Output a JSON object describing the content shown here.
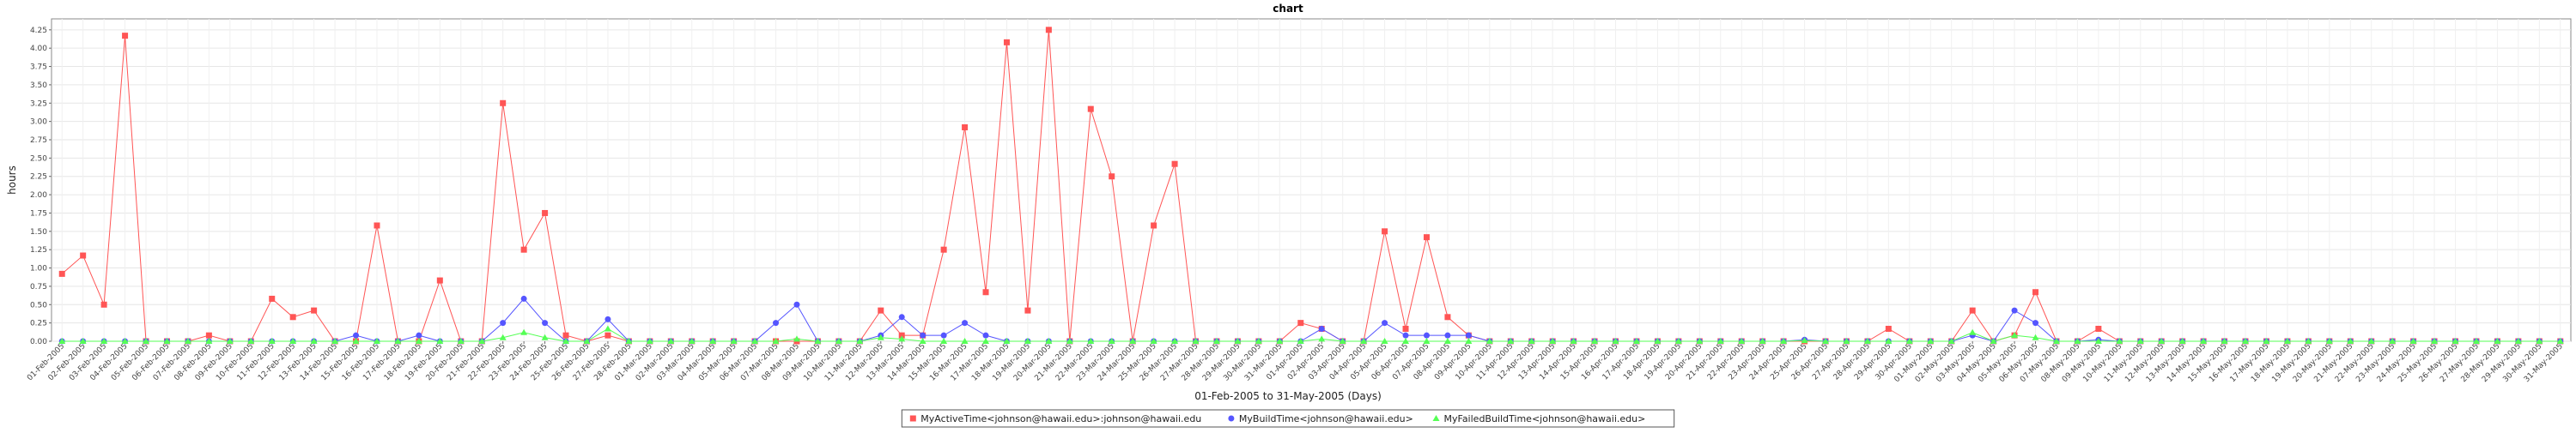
{
  "chart_data": {
    "type": "line",
    "title": "chart",
    "xlabel": "01-Feb-2005 to 31-May-2005 (Days)",
    "ylabel": "hours",
    "ylim": [
      0,
      4.4
    ],
    "yticks": [
      "0.00",
      "0.25",
      "0.50",
      "0.75",
      "1.00",
      "1.25",
      "1.50",
      "1.75",
      "2.00",
      "2.25",
      "2.50",
      "2.75",
      "3.00",
      "3.25",
      "3.50",
      "3.75",
      "4.00",
      "4.25"
    ],
    "grid": true,
    "legend_position": "bottom",
    "categories": [
      "01-Feb-2005",
      "02-Feb-2005",
      "03-Feb-2005",
      "04-Feb-2005",
      "05-Feb-2005",
      "06-Feb-2005",
      "07-Feb-2005",
      "08-Feb-2005",
      "09-Feb-2005",
      "10-Feb-2005",
      "11-Feb-2005",
      "12-Feb-2005",
      "13-Feb-2005",
      "14-Feb-2005",
      "15-Feb-2005",
      "16-Feb-2005",
      "17-Feb-2005",
      "18-Feb-2005",
      "19-Feb-2005",
      "20-Feb-2005",
      "21-Feb-2005",
      "22-Feb-2005",
      "23-Feb-2005",
      "24-Feb-2005",
      "25-Feb-2005",
      "26-Feb-2005",
      "27-Feb-2005",
      "28-Feb-2005",
      "01-Mar-2005",
      "02-Mar-2005",
      "03-Mar-2005",
      "04-Mar-2005",
      "05-Mar-2005",
      "06-Mar-2005",
      "07-Mar-2005",
      "08-Mar-2005",
      "09-Mar-2005",
      "10-Mar-2005",
      "11-Mar-2005",
      "12-Mar-2005",
      "13-Mar-2005",
      "14-Mar-2005",
      "15-Mar-2005",
      "16-Mar-2005",
      "17-Mar-2005",
      "18-Mar-2005",
      "19-Mar-2005",
      "20-Mar-2005",
      "21-Mar-2005",
      "22-Mar-2005",
      "23-Mar-2005",
      "24-Mar-2005",
      "25-Mar-2005",
      "26-Mar-2005",
      "27-Mar-2005",
      "28-Mar-2005",
      "29-Mar-2005",
      "30-Mar-2005",
      "31-Mar-2005",
      "01-Apr-2005",
      "02-Apr-2005",
      "03-Apr-2005",
      "04-Apr-2005",
      "05-Apr-2005",
      "06-Apr-2005",
      "07-Apr-2005",
      "08-Apr-2005",
      "09-Apr-2005",
      "10-Apr-2005",
      "11-Apr-2005",
      "12-Apr-2005",
      "13-Apr-2005",
      "14-Apr-2005",
      "15-Apr-2005",
      "16-Apr-2005",
      "17-Apr-2005",
      "18-Apr-2005",
      "19-Apr-2005",
      "20-Apr-2005",
      "21-Apr-2005",
      "22-Apr-2005",
      "23-Apr-2005",
      "24-Apr-2005",
      "25-Apr-2005",
      "26-Apr-2005",
      "27-Apr-2005",
      "28-Apr-2005",
      "29-Apr-2005",
      "30-Apr-2005",
      "01-May-2005",
      "02-May-2005",
      "03-May-2005",
      "04-May-2005",
      "05-May-2005",
      "06-May-2005",
      "07-May-2005",
      "08-May-2005",
      "09-May-2005",
      "10-May-2005",
      "11-May-2005",
      "12-May-2005",
      "13-May-2005",
      "14-May-2005",
      "15-May-2005",
      "16-May-2005",
      "17-May-2005",
      "18-May-2005",
      "19-May-2005",
      "20-May-2005",
      "21-May-2005",
      "22-May-2005",
      "23-May-2005",
      "24-May-2005",
      "25-May-2005",
      "26-May-2005",
      "27-May-2005",
      "28-May-2005",
      "29-May-2005",
      "30-May-2005",
      "31-May-2005"
    ],
    "series": [
      {
        "name": "MyActiveTime<johnson@hawaii.edu>:johnson@hawaii.edu",
        "color": "#ff5555",
        "marker": "square",
        "values": [
          0.92,
          1.17,
          0.5,
          4.17,
          0,
          0,
          0,
          0.08,
          0,
          0,
          0.58,
          0.33,
          0.42,
          0,
          0,
          1.58,
          0,
          0,
          0.83,
          0,
          0,
          3.25,
          1.25,
          1.75,
          0.08,
          0,
          0.08,
          0,
          0,
          0,
          0,
          0,
          0,
          0,
          0,
          0,
          0,
          0,
          0,
          0.42,
          0.08,
          0.08,
          1.25,
          2.92,
          0.67,
          4.08,
          0.42,
          4.25,
          0,
          3.17,
          2.25,
          0,
          1.58,
          2.42,
          0,
          0,
          0,
          0,
          0,
          0.25,
          0.17,
          0,
          0,
          1.5,
          0.17,
          1.42,
          0.33,
          0.08,
          0,
          0,
          0,
          0,
          0,
          0,
          0,
          0,
          0,
          0,
          0,
          0,
          0,
          0,
          0,
          0,
          0,
          0,
          0,
          0.17,
          0,
          0,
          0,
          0.42,
          0,
          0.08,
          0.67,
          0,
          0,
          0.17,
          0,
          0,
          0,
          0,
          0,
          0,
          0,
          0,
          0,
          0,
          0,
          0,
          0,
          0,
          0,
          0,
          0,
          0,
          0,
          0,
          0,
          0
        ]
      },
      {
        "name": "MyBuildTime<johnson@hawaii.edu>",
        "color": "#5555ff",
        "marker": "circle",
        "values": [
          0,
          0,
          0,
          0,
          0,
          0,
          0,
          0,
          0,
          0,
          0,
          0,
          0,
          0,
          0.08,
          0,
          0,
          0.08,
          0,
          0,
          0,
          0.25,
          0.58,
          0.25,
          0,
          0,
          0.3,
          0,
          0,
          0,
          0,
          0,
          0,
          0,
          0.25,
          0.5,
          0,
          0,
          0,
          0.08,
          0.33,
          0.08,
          0.08,
          0.25,
          0.08,
          0,
          0,
          0,
          0,
          0,
          0,
          0,
          0,
          0,
          0,
          0,
          0,
          0,
          0,
          0,
          0.17,
          0,
          0,
          0.25,
          0.08,
          0.08,
          0.08,
          0.08,
          0,
          0,
          0,
          0,
          0,
          0,
          0,
          0,
          0,
          0,
          0,
          0,
          0,
          0,
          0,
          0.02,
          0,
          0,
          0,
          0,
          0,
          0,
          0,
          0.08,
          0,
          0.42,
          0.25,
          0,
          0,
          0.02,
          0,
          0,
          0,
          0,
          0,
          0,
          0,
          0,
          0,
          0,
          0,
          0,
          0,
          0,
          0,
          0,
          0,
          0,
          0,
          0,
          0,
          0
        ]
      },
      {
        "name": "MyFailedBuildTime<johnson@hawaii.edu>",
        "color": "#55ff55",
        "marker": "triangle",
        "values": [
          0,
          0,
          0,
          0,
          0,
          0,
          0,
          0,
          0,
          0,
          0,
          0,
          0,
          0,
          0,
          0,
          0,
          0,
          0,
          0,
          0,
          0.05,
          0.12,
          0.05,
          0,
          0,
          0.17,
          0,
          0,
          0,
          0,
          0,
          0,
          0,
          0,
          0.03,
          0,
          0,
          0,
          0.05,
          0.03,
          0,
          0,
          0,
          0,
          0,
          0,
          0,
          0,
          0,
          0,
          0,
          0,
          0,
          0,
          0,
          0,
          0,
          0,
          0,
          0.03,
          0,
          0,
          0,
          0,
          0,
          0,
          0,
          0,
          0,
          0,
          0,
          0,
          0,
          0,
          0,
          0,
          0,
          0,
          0,
          0,
          0,
          0,
          0.01,
          0,
          0,
          0,
          0,
          0,
          0,
          0,
          0.12,
          0,
          0.08,
          0.05,
          0,
          0,
          0,
          0,
          0,
          0,
          0,
          0,
          0,
          0,
          0,
          0,
          0,
          0,
          0,
          0,
          0,
          0,
          0,
          0,
          0,
          0,
          0,
          0,
          0
        ]
      }
    ]
  }
}
